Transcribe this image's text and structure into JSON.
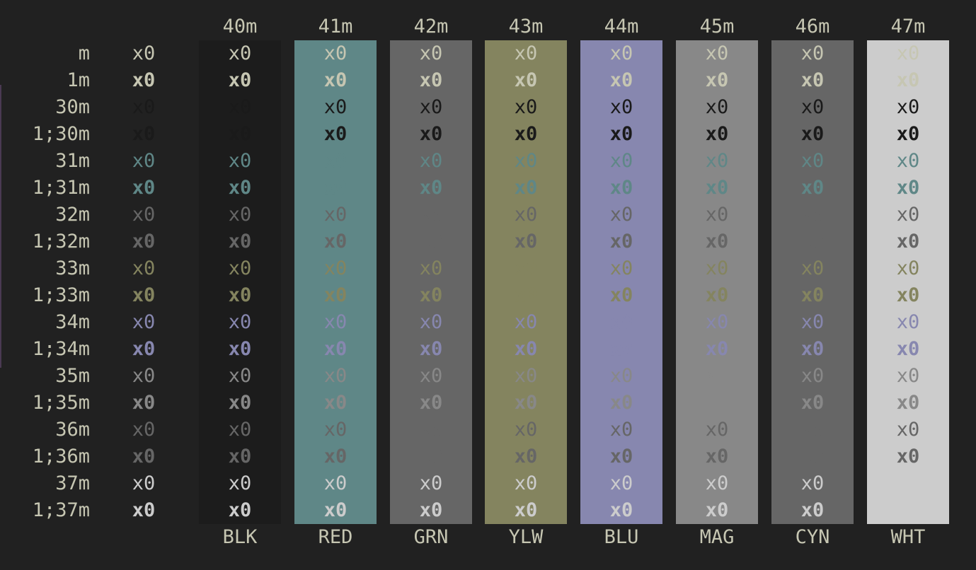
{
  "rows": [
    "m",
    "1m",
    "30m",
    "1;30m",
    "31m",
    "1;31m",
    "32m",
    "1;32m",
    "33m",
    "1;33m",
    "34m",
    "1;34m",
    "35m",
    "1;35m",
    "36m",
    "1;36m",
    "37m",
    "1;37m"
  ],
  "cell_text": "x0",
  "columns": [
    {
      "code": "40m",
      "label": "BLK",
      "bg": "#1c1c1c"
    },
    {
      "code": "41m",
      "label": "RED",
      "bg": "#5f8787"
    },
    {
      "code": "42m",
      "label": "GRN",
      "bg": "#666666"
    },
    {
      "code": "43m",
      "label": "YLW",
      "bg": "#84845f"
    },
    {
      "code": "44m",
      "label": "BLU",
      "bg": "#8787af"
    },
    {
      "code": "45m",
      "label": "MAG",
      "bg": "#888888"
    },
    {
      "code": "46m",
      "label": "CYN",
      "bg": "#666666"
    },
    {
      "code": "47m",
      "label": "WHT",
      "bg": "#cccccc"
    }
  ],
  "colors": {
    "terminal_bg": "#212121",
    "default_fg": "#c6c6b2",
    "fg_30": "#1a1a1a",
    "fg_31": "#5f8787",
    "fg_32": "#666666",
    "fg_33": "#84845f",
    "fg_34": "#8787af",
    "fg_35": "#888888",
    "fg_36": "#666666",
    "fg_37": "#cccccc"
  }
}
